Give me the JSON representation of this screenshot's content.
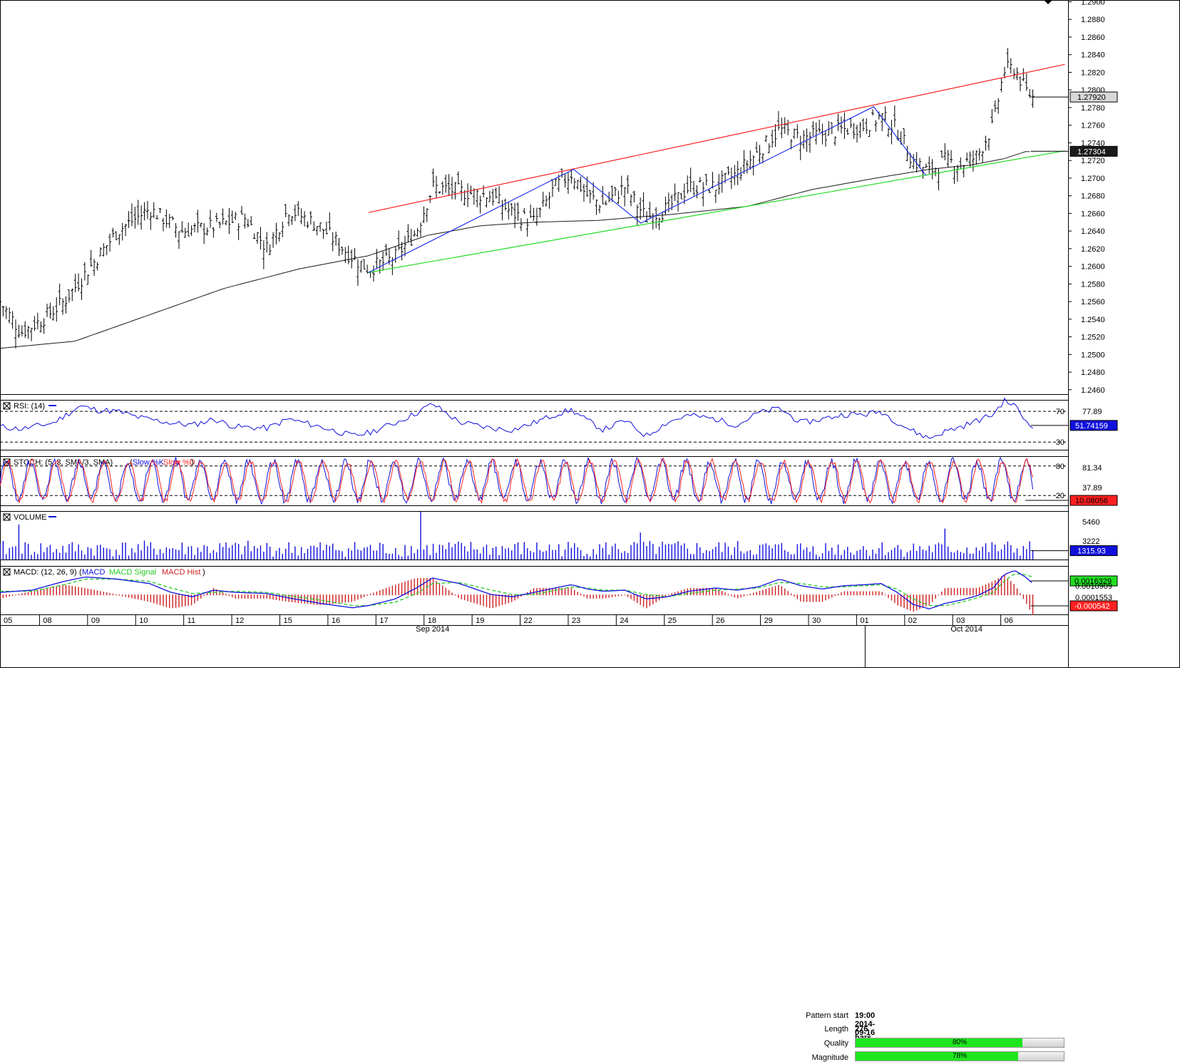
{
  "colors": {
    "price_bars": "#000000",
    "ma_line": "#1a1a1a",
    "channel_upper": "#ff2020",
    "channel_lower": "#22dd22",
    "pattern_zigzag": "#2233ee",
    "rsi_line": "#1010dd",
    "stoch_k": "#1010dd",
    "stoch_d": "#ff2020",
    "volume_bars": "#1010dd",
    "macd_line": "#1010dd",
    "macd_signal": "#22cc22",
    "macd_hist": "#cc2020",
    "price_tag_bg": "#d8d8d8",
    "vol_tag_bg": "#1010dd",
    "signal_tag_bg": "#22dd22",
    "hist_tag_bg": "#ff2020"
  },
  "pattern_info": {
    "pattern_start_label": "Pattern start",
    "pattern_start_value": "19:00 2014-09-16",
    "length_label": "Length",
    "length_value": "276 bars",
    "quality_label": "Quality",
    "quality_pct": 80,
    "quality_text": "80%",
    "magnitude_label": "Magnitude",
    "magnitude_pct": 78,
    "magnitude_text": "78%"
  },
  "chart_data": [
    {
      "type": "line",
      "description_key": "price",
      "y_ticks": [
        "1.2900",
        "1.2880",
        "1.2860",
        "1.2840",
        "1.2820",
        "1.2800",
        "1.2780",
        "1.2760",
        "1.2740",
        "1.2720",
        "1.2700",
        "1.2680",
        "1.2660",
        "1.2640",
        "1.2620",
        "1.2600",
        "1.2580",
        "1.2560",
        "1.2540",
        "1.2520",
        "1.2500",
        "1.2480",
        "1.2460"
      ],
      "ylim": [
        1.2455,
        1.2902
      ],
      "last_price_label": "1.27920",
      "last_price": 1.2792,
      "ma_label": "1.27304",
      "ma_value": 1.27304,
      "x_day_labels": [
        "05",
        "08",
        "09",
        "10",
        "11",
        "12",
        "15",
        "16",
        "17",
        "18",
        "19",
        "22",
        "23",
        "24",
        "25",
        "26",
        "29",
        "30",
        "01",
        "02",
        "03",
        "06"
      ],
      "x_month_labels": [
        "Sep 2014",
        "Oct 2014"
      ],
      "close_path": [
        [
          0,
          1.256
        ],
        [
          0.02,
          1.2525
        ],
        [
          0.04,
          1.254
        ],
        [
          0.06,
          1.256
        ],
        [
          0.085,
          1.26
        ],
        [
          0.11,
          1.264
        ],
        [
          0.14,
          1.2665
        ],
        [
          0.17,
          1.264
        ],
        [
          0.2,
          1.2645
        ],
        [
          0.23,
          1.2655
        ],
        [
          0.25,
          1.262
        ],
        [
          0.27,
          1.2665
        ],
        [
          0.3,
          1.2645
        ],
        [
          0.33,
          1.261
        ],
        [
          0.345,
          1.2597
        ],
        [
          0.37,
          1.261
        ],
        [
          0.39,
          1.264
        ],
        [
          0.405,
          1.269
        ],
        [
          0.43,
          1.2685
        ],
        [
          0.46,
          1.268
        ],
        [
          0.48,
          1.266
        ],
        [
          0.5,
          1.265
        ],
        [
          0.52,
          1.269
        ],
        [
          0.535,
          1.2705
        ],
        [
          0.55,
          1.268
        ],
        [
          0.565,
          1.267
        ],
        [
          0.585,
          1.269
        ],
        [
          0.605,
          1.2655
        ],
        [
          0.625,
          1.2665
        ],
        [
          0.645,
          1.269
        ],
        [
          0.67,
          1.269
        ],
        [
          0.69,
          1.2705
        ],
        [
          0.71,
          1.273
        ],
        [
          0.73,
          1.2755
        ],
        [
          0.75,
          1.2745
        ],
        [
          0.77,
          1.275
        ],
        [
          0.79,
          1.2755
        ],
        [
          0.81,
          1.276
        ],
        [
          0.825,
          1.277
        ],
        [
          0.84,
          1.2755
        ],
        [
          0.855,
          1.272
        ],
        [
          0.87,
          1.2707
        ],
        [
          0.885,
          1.272
        ],
        [
          0.9,
          1.2715
        ],
        [
          0.915,
          1.2725
        ],
        [
          0.93,
          1.276
        ],
        [
          0.94,
          1.2822
        ],
        [
          0.95,
          1.2825
        ],
        [
          0.96,
          1.28
        ],
        [
          0.967,
          1.2792
        ]
      ],
      "ma_path": [
        [
          0,
          1.2507
        ],
        [
          0.07,
          1.2515
        ],
        [
          0.14,
          1.2545
        ],
        [
          0.21,
          1.2575
        ],
        [
          0.28,
          1.2597
        ],
        [
          0.345,
          1.2612
        ],
        [
          0.4,
          1.2635
        ],
        [
          0.45,
          1.2646
        ],
        [
          0.5,
          1.265
        ],
        [
          0.56,
          1.2652
        ],
        [
          0.63,
          1.2659
        ],
        [
          0.7,
          1.2668
        ],
        [
          0.76,
          1.2687
        ],
        [
          0.82,
          1.27
        ],
        [
          0.87,
          1.271
        ],
        [
          0.91,
          1.2715
        ],
        [
          0.94,
          1.2722
        ],
        [
          0.96,
          1.273
        ],
        [
          0.967,
          1.273
        ]
      ],
      "channel_upper": [
        [
          0.345,
          1.2661
        ],
        [
          0.997,
          1.2829
        ]
      ],
      "channel_lower": [
        [
          0.345,
          1.2593
        ],
        [
          0.997,
          1.2731
        ]
      ],
      "zigzag": [
        [
          0.345,
          1.2593
        ],
        [
          0.537,
          1.271
        ],
        [
          0.6,
          1.2649
        ],
        [
          0.818,
          1.2781
        ],
        [
          0.867,
          1.2703
        ]
      ]
    },
    {
      "type": "line",
      "description_key": "rsi",
      "title": "RSI: (14)",
      "levels": [
        "70",
        "30"
      ],
      "right_labels": [
        "77.89"
      ],
      "last_value_label": "51.74159",
      "ylim": [
        20,
        85
      ],
      "path": [
        [
          0,
          50
        ],
        [
          0.02,
          47
        ],
        [
          0.05,
          55
        ],
        [
          0.075,
          77
        ],
        [
          0.09,
          72
        ],
        [
          0.11,
          70
        ],
        [
          0.13,
          62
        ],
        [
          0.16,
          55
        ],
        [
          0.18,
          52
        ],
        [
          0.2,
          60
        ],
        [
          0.22,
          50
        ],
        [
          0.25,
          48
        ],
        [
          0.27,
          60
        ],
        [
          0.3,
          50
        ],
        [
          0.33,
          38
        ],
        [
          0.345,
          42
        ],
        [
          0.37,
          55
        ],
        [
          0.39,
          68
        ],
        [
          0.405,
          80
        ],
        [
          0.43,
          56
        ],
        [
          0.46,
          48
        ],
        [
          0.48,
          46
        ],
        [
          0.5,
          55
        ],
        [
          0.52,
          66
        ],
        [
          0.535,
          72
        ],
        [
          0.55,
          58
        ],
        [
          0.565,
          46
        ],
        [
          0.585,
          58
        ],
        [
          0.605,
          38
        ],
        [
          0.625,
          56
        ],
        [
          0.645,
          65
        ],
        [
          0.67,
          60
        ],
        [
          0.69,
          52
        ],
        [
          0.71,
          68
        ],
        [
          0.73,
          74
        ],
        [
          0.75,
          55
        ],
        [
          0.77,
          60
        ],
        [
          0.79,
          66
        ],
        [
          0.81,
          66
        ],
        [
          0.825,
          70
        ],
        [
          0.84,
          56
        ],
        [
          0.855,
          44
        ],
        [
          0.87,
          35
        ],
        [
          0.885,
          44
        ],
        [
          0.9,
          50
        ],
        [
          0.915,
          58
        ],
        [
          0.93,
          66
        ],
        [
          0.94,
          84
        ],
        [
          0.95,
          78
        ],
        [
          0.96,
          58
        ],
        [
          0.967,
          52
        ]
      ]
    },
    {
      "type": "line",
      "description_key": "stoch",
      "title": "STOCH: (5, 3, SMA/3, SMA)",
      "legend_k": "Slow %K",
      "legend_d": "Slow %D",
      "levels": [
        "80",
        "20"
      ],
      "right_labels": [
        "81.34",
        "37.89"
      ],
      "last_value_label": "10.08056",
      "ylim": [
        0,
        100
      ],
      "cycle_centers": [
        0.01,
        0.04,
        0.07,
        0.1,
        0.13,
        0.16,
        0.185,
        0.21,
        0.235,
        0.26,
        0.285,
        0.31,
        0.335,
        0.36,
        0.385,
        0.405,
        0.425,
        0.445,
        0.465,
        0.485,
        0.505,
        0.525,
        0.545,
        0.565,
        0.585,
        0.605,
        0.625,
        0.645,
        0.665,
        0.685,
        0.705,
        0.725,
        0.745,
        0.765,
        0.785,
        0.805,
        0.825,
        0.845,
        0.865,
        0.885,
        0.905,
        0.925,
        0.945,
        0.96
      ]
    },
    {
      "type": "bar",
      "description_key": "volume",
      "title": "VOLUME",
      "right_labels": [
        "5460",
        "3222"
      ],
      "last_value_label": "1315.93",
      "ylim": [
        0,
        7200
      ],
      "spikes": [
        [
          0.017,
          5200
        ],
        [
          0.395,
          7100
        ],
        [
          0.6,
          4000
        ],
        [
          0.885,
          4600
        ]
      ]
    },
    {
      "type": "line",
      "description_key": "macd",
      "title": "MACD: (12, 26, 9)",
      "legend_macd": "MACD",
      "legend_signal": "MACD Signal",
      "legend_hist": "MACD Hist",
      "right_labels": [
        "0.0010909",
        "0.0001553"
      ],
      "signal_tag_label": "0.0016329",
      "hist_tag_label": "-0.000542",
      "ylim": [
        -0.0018,
        0.0026
      ],
      "macd_path": [
        [
          0,
          0.0002
        ],
        [
          0.03,
          0.0004
        ],
        [
          0.06,
          0.0012
        ],
        [
          0.08,
          0.0016
        ],
        [
          0.11,
          0.0014
        ],
        [
          0.14,
          0.001
        ],
        [
          0.16,
          0.0002
        ],
        [
          0.18,
          -0.0002
        ],
        [
          0.2,
          0.0004
        ],
        [
          0.22,
          0.0002
        ],
        [
          0.25,
          0.0001
        ],
        [
          0.27,
          -0.0003
        ],
        [
          0.3,
          -0.0008
        ],
        [
          0.33,
          -0.0012
        ],
        [
          0.345,
          -0.001
        ],
        [
          0.37,
          -0.0004
        ],
        [
          0.39,
          0.0006
        ],
        [
          0.405,
          0.0015
        ],
        [
          0.43,
          0.001
        ],
        [
          0.46,
          0.0
        ],
        [
          0.48,
          -0.0002
        ],
        [
          0.5,
          0.0002
        ],
        [
          0.52,
          0.0006
        ],
        [
          0.535,
          0.0009
        ],
        [
          0.55,
          0.0005
        ],
        [
          0.565,
          0.0003
        ],
        [
          0.585,
          0.0004
        ],
        [
          0.605,
          -0.0004
        ],
        [
          0.625,
          -0.0002
        ],
        [
          0.645,
          0.0003
        ],
        [
          0.67,
          0.0006
        ],
        [
          0.69,
          0.0004
        ],
        [
          0.71,
          0.0007
        ],
        [
          0.73,
          0.0014
        ],
        [
          0.75,
          0.0008
        ],
        [
          0.77,
          0.0005
        ],
        [
          0.79,
          0.0008
        ],
        [
          0.81,
          0.0009
        ],
        [
          0.825,
          0.001
        ],
        [
          0.84,
          0.0002
        ],
        [
          0.855,
          -0.0009
        ],
        [
          0.87,
          -0.0013
        ],
        [
          0.885,
          -0.0008
        ],
        [
          0.9,
          -0.0005
        ],
        [
          0.915,
          -0.0001
        ],
        [
          0.93,
          0.0006
        ],
        [
          0.94,
          0.0018
        ],
        [
          0.95,
          0.0022
        ],
        [
          0.96,
          0.0016
        ],
        [
          0.967,
          0.001
        ]
      ],
      "signal_path": [
        [
          0,
          0.0003
        ],
        [
          0.03,
          0.0003
        ],
        [
          0.06,
          0.0009
        ],
        [
          0.08,
          0.0014
        ],
        [
          0.11,
          0.0014
        ],
        [
          0.14,
          0.0012
        ],
        [
          0.16,
          0.0006
        ],
        [
          0.18,
          0.0001
        ],
        [
          0.2,
          0.0002
        ],
        [
          0.22,
          0.0003
        ],
        [
          0.25,
          0.0002
        ],
        [
          0.27,
          -0.0001
        ],
        [
          0.3,
          -0.0005
        ],
        [
          0.33,
          -0.001
        ],
        [
          0.345,
          -0.001
        ],
        [
          0.37,
          -0.0007
        ],
        [
          0.39,
          0.0001
        ],
        [
          0.405,
          0.001
        ],
        [
          0.43,
          0.0011
        ],
        [
          0.46,
          0.0004
        ],
        [
          0.48,
          0.0
        ],
        [
          0.5,
          0.0
        ],
        [
          0.52,
          0.0004
        ],
        [
          0.535,
          0.0007
        ],
        [
          0.55,
          0.0006
        ],
        [
          0.565,
          0.0004
        ],
        [
          0.585,
          0.0004
        ],
        [
          0.605,
          0.0
        ],
        [
          0.625,
          -0.0002
        ],
        [
          0.645,
          0.0001
        ],
        [
          0.67,
          0.0004
        ],
        [
          0.69,
          0.0005
        ],
        [
          0.71,
          0.0006
        ],
        [
          0.73,
          0.0011
        ],
        [
          0.75,
          0.001
        ],
        [
          0.77,
          0.0007
        ],
        [
          0.79,
          0.0007
        ],
        [
          0.81,
          0.0008
        ],
        [
          0.825,
          0.0009
        ],
        [
          0.84,
          0.0005
        ],
        [
          0.855,
          -0.0004
        ],
        [
          0.87,
          -0.001
        ],
        [
          0.885,
          -0.001
        ],
        [
          0.9,
          -0.0007
        ],
        [
          0.915,
          -0.0003
        ],
        [
          0.93,
          0.0002
        ],
        [
          0.94,
          0.0012
        ],
        [
          0.95,
          0.0019
        ],
        [
          0.96,
          0.0018
        ],
        [
          0.967,
          0.0016
        ]
      ]
    }
  ]
}
